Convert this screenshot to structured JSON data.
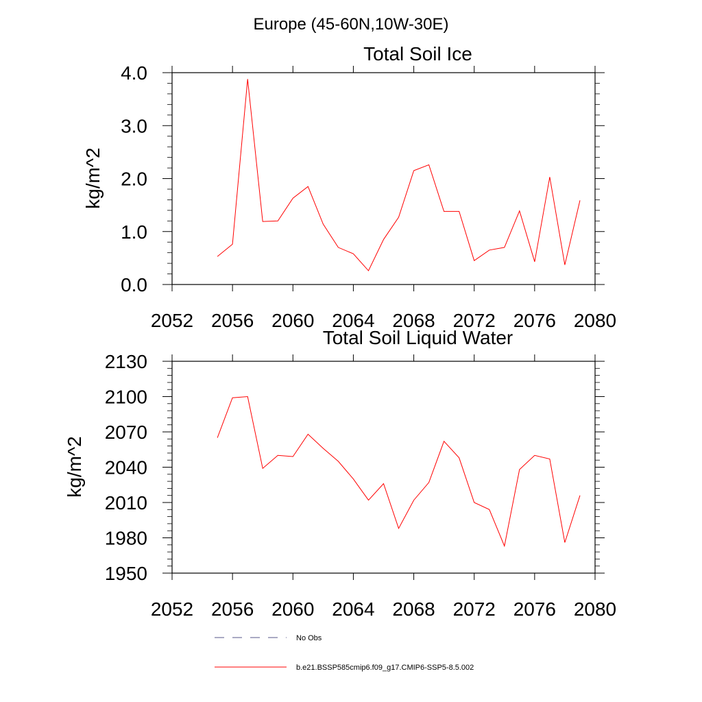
{
  "page_title": "Europe (45-60N,10W-30E)",
  "chart_data": [
    {
      "type": "line",
      "title": "Total Soil Ice",
      "xlabel": "",
      "ylabel": "kg/m^2",
      "xlim": [
        2052,
        2080
      ],
      "ylim": [
        0.0,
        4.0
      ],
      "x_ticks": [
        2052,
        2056,
        2060,
        2064,
        2068,
        2072,
        2076,
        2080
      ],
      "y_ticks": [
        "0.0",
        "1.0",
        "2.0",
        "3.0",
        "4.0"
      ],
      "y_tick_values": [
        0,
        1,
        2,
        3,
        4
      ],
      "grid": false,
      "series": [
        {
          "name": "b.e21.BSSP585cmip6.f09_g17.CMIP6-SSP5-8.5.002",
          "color": "#ff0000",
          "x": [
            2055,
            2056,
            2057,
            2058,
            2059,
            2060,
            2061,
            2062,
            2063,
            2064,
            2065,
            2066,
            2067,
            2068,
            2069,
            2070,
            2071,
            2072,
            2073,
            2074,
            2075,
            2076,
            2077,
            2078,
            2079
          ],
          "y": [
            0.53,
            0.76,
            3.88,
            1.19,
            1.2,
            1.63,
            1.85,
            1.14,
            0.7,
            0.58,
            0.26,
            0.85,
            1.27,
            2.15,
            2.26,
            1.38,
            1.38,
            0.45,
            0.65,
            0.7,
            1.39,
            0.43,
            2.03,
            0.37,
            1.59
          ]
        }
      ]
    },
    {
      "type": "line",
      "title": "Total Soil Liquid Water",
      "xlabel": "",
      "ylabel": "kg/m^2",
      "xlim": [
        2052,
        2080
      ],
      "ylim": [
        1950,
        2130
      ],
      "x_ticks": [
        2052,
        2056,
        2060,
        2064,
        2068,
        2072,
        2076,
        2080
      ],
      "y_ticks": [
        "1950",
        "1980",
        "2010",
        "2040",
        "2070",
        "2100",
        "2130"
      ],
      "y_tick_values": [
        1950,
        1980,
        2010,
        2040,
        2070,
        2100,
        2130
      ],
      "grid": false,
      "series": [
        {
          "name": "b.e21.BSSP585cmip6.f09_g17.CMIP6-SSP5-8.5.002",
          "color": "#ff0000",
          "x": [
            2055,
            2056,
            2057,
            2058,
            2059,
            2060,
            2061,
            2062,
            2063,
            2064,
            2065,
            2066,
            2067,
            2068,
            2069,
            2070,
            2071,
            2072,
            2073,
            2074,
            2075,
            2076,
            2077,
            2078,
            2079
          ],
          "y": [
            2065,
            2099,
            2100,
            2039,
            2050,
            2049,
            2068,
            2056,
            2045,
            2030,
            2012,
            2026,
            1988,
            2012,
            2027,
            2062,
            2048,
            2010,
            2004,
            1973,
            2038,
            2050,
            2047,
            1976,
            2016
          ]
        }
      ]
    }
  ],
  "legend": {
    "placement": "bottom",
    "items": [
      {
        "label": "No Obs",
        "color": "#555588",
        "style": "dashed"
      },
      {
        "label": "b.e21.BSSP585cmip6.f09_g17.CMIP6-SSP5-8.5.002",
        "color": "#ff0000",
        "style": "solid"
      }
    ]
  }
}
